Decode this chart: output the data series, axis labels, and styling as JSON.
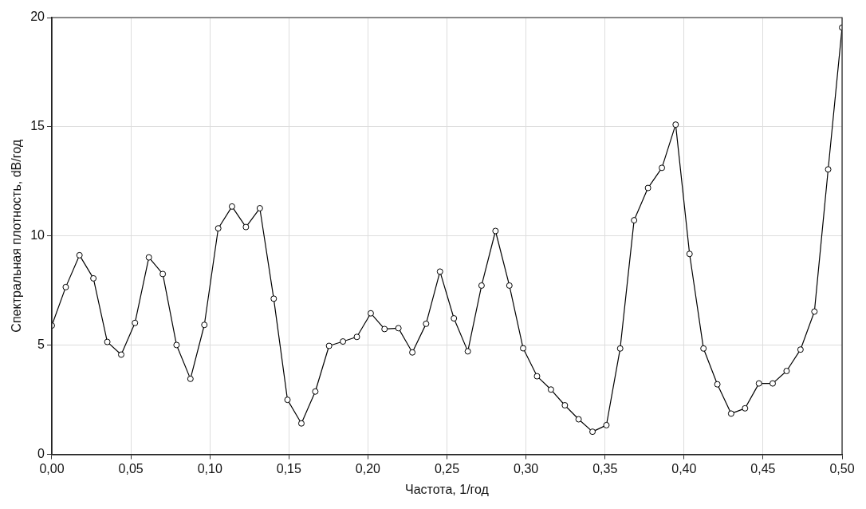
{
  "chart_data": {
    "type": "line",
    "xlabel": "Частота, 1/год",
    "ylabel": "Спектральная плотность, dB/год",
    "x": [
      0,
      0.0088,
      0.0175,
      0.0263,
      0.0351,
      0.0439,
      0.0526,
      0.0614,
      0.0702,
      0.0789,
      0.0877,
      0.0965,
      0.1053,
      0.114,
      0.1228,
      0.1316,
      0.1404,
      0.1491,
      0.1579,
      0.1667,
      0.1754,
      0.1842,
      0.193,
      0.2018,
      0.2105,
      0.2193,
      0.2281,
      0.2368,
      0.2456,
      0.2544,
      0.2632,
      0.2719,
      0.2807,
      0.2895,
      0.2982,
      0.307,
      0.3158,
      0.3246,
      0.3333,
      0.3421,
      0.3509,
      0.3596,
      0.3684,
      0.3772,
      0.386,
      0.3947,
      0.4035,
      0.4123,
      0.4211,
      0.4298,
      0.4386,
      0.4474,
      0.4561,
      0.4649,
      0.4737,
      0.4825,
      0.4912,
      0.5
    ],
    "series": [
      {
        "color": "#000000",
        "values": [
          5.9,
          7.66,
          9.12,
          8.06,
          5.15,
          4.57,
          6.02,
          9.02,
          8.26,
          5.01,
          3.46,
          5.93,
          10.35,
          11.35,
          10.41,
          11.27,
          7.13,
          2.5,
          1.42,
          2.88,
          4.97,
          5.17,
          5.38,
          6.46,
          5.74,
          5.78,
          4.67,
          5.98,
          8.37,
          6.23,
          4.72,
          7.73,
          10.23,
          7.73,
          4.86,
          3.58,
          2.97,
          2.25,
          1.61,
          1.04,
          1.34,
          4.85,
          10.72,
          12.2,
          13.12,
          15.1,
          9.18,
          4.85,
          3.21,
          1.87,
          2.11,
          3.25,
          3.25,
          3.82,
          4.8,
          6.54,
          13.05,
          19.54
        ]
      }
    ],
    "xlim": [
      0,
      0.5
    ],
    "xticks": [
      {
        "value": 0,
        "label": "0,00"
      },
      {
        "value": 0.05,
        "label": "0,05"
      },
      {
        "value": 0.1,
        "label": "0,10"
      },
      {
        "value": 0.15,
        "label": "0,15"
      },
      {
        "value": 0.2,
        "label": "0,20"
      },
      {
        "value": 0.25,
        "label": "0,25"
      },
      {
        "value": 0.3,
        "label": "0,30"
      },
      {
        "value": 0.35,
        "label": "0,35"
      },
      {
        "value": 0.4,
        "label": "0,40"
      },
      {
        "value": 0.45,
        "label": "0,45"
      },
      {
        "value": 0.5,
        "label": "0,50"
      }
    ],
    "ylim": [
      0,
      20
    ],
    "yticks": [
      0,
      5,
      10,
      15,
      20
    ],
    "grid": true,
    "marker": "circle",
    "line_style": "solid",
    "legend": false
  }
}
